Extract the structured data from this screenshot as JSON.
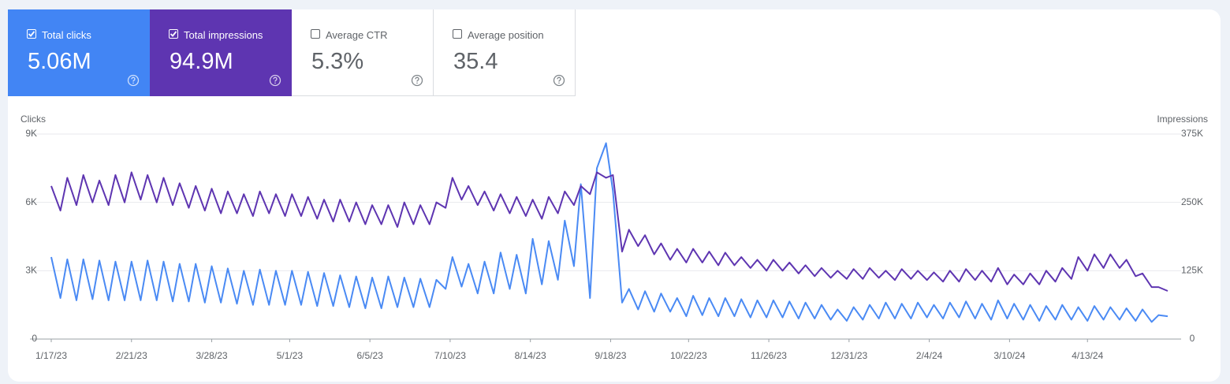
{
  "metrics": [
    {
      "label": "Total clicks",
      "value": "5.06M",
      "checked": true
    },
    {
      "label": "Total impressions",
      "value": "94.9M",
      "checked": true
    },
    {
      "label": "Average CTR",
      "value": "5.3%",
      "checked": false
    },
    {
      "label": "Average position",
      "value": "35.4",
      "checked": false
    }
  ],
  "chart_data": {
    "type": "line",
    "ylabel": "Clicks",
    "y2label": "Impressions",
    "x": [
      "1/17/23",
      "1/21/23",
      "1/24/23",
      "1/28/23",
      "1/31/23",
      "2/4/23",
      "2/7/23",
      "2/11/23",
      "2/14/23",
      "2/18/23",
      "2/21/23",
      "2/25/23",
      "2/28/23",
      "3/4/23",
      "3/7/23",
      "3/11/23",
      "3/14/23",
      "3/18/23",
      "3/21/23",
      "3/25/23",
      "3/28/23",
      "4/1/23",
      "4/4/23",
      "4/8/23",
      "4/11/23",
      "4/15/23",
      "4/18/23",
      "4/22/23",
      "4/25/23",
      "4/29/23",
      "5/2/23",
      "5/6/23",
      "5/9/23",
      "5/13/23",
      "5/16/23",
      "5/20/23",
      "5/23/23",
      "5/27/23",
      "5/30/23",
      "6/3/23",
      "6/6/23",
      "6/10/23",
      "6/13/23",
      "6/17/23",
      "6/20/23",
      "6/24/23",
      "6/27/23",
      "7/1/23",
      "7/4/23",
      "7/8/23",
      "7/11/23",
      "7/15/23",
      "7/18/23",
      "7/22/23",
      "7/25/23",
      "7/29/23",
      "8/1/23",
      "8/5/23",
      "8/8/23",
      "8/12/23",
      "8/15/23",
      "8/19/23",
      "8/22/23",
      "8/26/23",
      "8/29/23",
      "9/2/23",
      "9/5/23",
      "9/9/23",
      "9/12/23",
      "9/16/23",
      "9/19/23",
      "9/23/23",
      "9/26/23",
      "9/30/23",
      "10/3/23",
      "10/7/23",
      "10/10/23",
      "10/14/23",
      "10/17/23",
      "10/21/23",
      "10/24/23",
      "10/28/23",
      "10/31/23",
      "11/4/23",
      "11/7/23",
      "11/11/23",
      "11/14/23",
      "11/18/23",
      "11/21/23",
      "11/25/23",
      "11/28/23",
      "12/2/23",
      "12/5/23",
      "12/9/23",
      "12/12/23",
      "12/16/23",
      "12/19/23",
      "12/23/23",
      "12/26/23",
      "12/30/23",
      "1/2/24",
      "1/6/24",
      "1/9/24",
      "1/13/24",
      "1/16/24",
      "1/20/24",
      "1/23/24",
      "1/27/24",
      "1/30/24",
      "2/3/24",
      "2/6/24",
      "2/10/24",
      "2/13/24",
      "2/17/24",
      "2/20/24",
      "2/24/24",
      "2/27/24",
      "3/2/24",
      "3/5/24",
      "3/9/24",
      "3/12/24",
      "3/16/24",
      "3/19/24",
      "3/23/24",
      "3/26/24",
      "3/30/24",
      "4/2/24",
      "4/6/24",
      "4/9/24",
      "4/13/24",
      "4/16/24",
      "4/20/24",
      "4/23/24",
      "4/27/24",
      "4/30/24",
      "5/4/24",
      "5/7/24",
      "5/11/24",
      "5/14/24",
      "5/18/24"
    ],
    "xlim": [
      "1/17/23",
      "5/18/24"
    ],
    "xticks": [
      "1/17/23",
      "2/21/23",
      "3/28/23",
      "5/1/23",
      "6/5/23",
      "7/10/23",
      "8/14/23",
      "9/18/23",
      "10/22/23",
      "11/26/23",
      "12/31/23",
      "2/4/24",
      "3/10/24",
      "4/13/24"
    ],
    "ylim": [
      0,
      9000
    ],
    "yticks": [
      0,
      {
        "value": 3000,
        "label": "3K"
      },
      {
        "value": 6000,
        "label": "6K"
      },
      {
        "value": 9000,
        "label": "9K"
      }
    ],
    "y2lim": [
      0,
      375000
    ],
    "y2ticks": [
      0,
      {
        "value": 125000,
        "label": "125K"
      },
      {
        "value": 250000,
        "label": "250K"
      },
      {
        "value": 375000,
        "label": "375K"
      }
    ],
    "grid": true,
    "series": [
      {
        "name": "Clicks",
        "color": "#4a8af4",
        "values": [
          3600,
          1800,
          3500,
          1700,
          3500,
          1750,
          3450,
          1700,
          3400,
          1700,
          3400,
          1700,
          3450,
          1700,
          3400,
          1650,
          3300,
          1650,
          3300,
          1600,
          3200,
          1600,
          3100,
          1550,
          3000,
          1500,
          3050,
          1500,
          3000,
          1500,
          3000,
          1500,
          2950,
          1450,
          2900,
          1450,
          2800,
          1400,
          2750,
          1350,
          2700,
          1350,
          2750,
          1400,
          2700,
          1400,
          2650,
          1400,
          2600,
          2200,
          3600,
          2300,
          3300,
          2000,
          3400,
          2000,
          3800,
          2200,
          3700,
          2000,
          4400,
          2400,
          4300,
          2600,
          5200,
          3200,
          6800,
          1800,
          7500,
          8600,
          6500,
          1600,
          2200,
          1300,
          2100,
          1200,
          2000,
          1200,
          1800,
          1000,
          1900,
          1050,
          1800,
          1000,
          1800,
          1000,
          1750,
          950,
          1700,
          950,
          1700,
          950,
          1650,
          900,
          1600,
          900,
          1500,
          850,
          1300,
          800,
          1400,
          850,
          1500,
          900,
          1600,
          900,
          1550,
          900,
          1600,
          950,
          1500,
          900,
          1600,
          950,
          1650,
          900,
          1550,
          850,
          1700,
          900,
          1550,
          850,
          1500,
          800,
          1450,
          850,
          1500,
          850,
          1400,
          800,
          1450,
          850,
          1400,
          850,
          1350,
          800,
          1300,
          750,
          1050,
          1000
        ]
      },
      {
        "name": "Impressions",
        "color": "#5e35b1",
        "axis": "y2",
        "values": [
          280000,
          235000,
          295000,
          245000,
          300000,
          250000,
          290000,
          245000,
          300000,
          250000,
          305000,
          255000,
          300000,
          250000,
          295000,
          245000,
          285000,
          240000,
          280000,
          235000,
          275000,
          230000,
          270000,
          230000,
          265000,
          225000,
          270000,
          230000,
          265000,
          225000,
          265000,
          225000,
          260000,
          220000,
          255000,
          215000,
          255000,
          215000,
          250000,
          210000,
          245000,
          210000,
          245000,
          205000,
          250000,
          210000,
          245000,
          210000,
          250000,
          240000,
          295000,
          255000,
          280000,
          245000,
          270000,
          235000,
          265000,
          230000,
          260000,
          225000,
          255000,
          220000,
          260000,
          230000,
          270000,
          245000,
          280000,
          265000,
          305000,
          295000,
          300000,
          160000,
          200000,
          170000,
          190000,
          155000,
          175000,
          145000,
          165000,
          140000,
          165000,
          140000,
          160000,
          135000,
          158000,
          135000,
          150000,
          130000,
          145000,
          125000,
          145000,
          125000,
          140000,
          120000,
          135000,
          115000,
          130000,
          112000,
          125000,
          110000,
          128000,
          110000,
          130000,
          112000,
          125000,
          108000,
          128000,
          110000,
          125000,
          108000,
          122000,
          105000,
          125000,
          105000,
          128000,
          108000,
          125000,
          105000,
          130000,
          100000,
          118000,
          100000,
          120000,
          100000,
          125000,
          105000,
          130000,
          110000,
          150000,
          125000,
          155000,
          130000,
          155000,
          130000,
          145000,
          115000,
          120000,
          95000,
          95000,
          88000
        ]
      }
    ]
  }
}
